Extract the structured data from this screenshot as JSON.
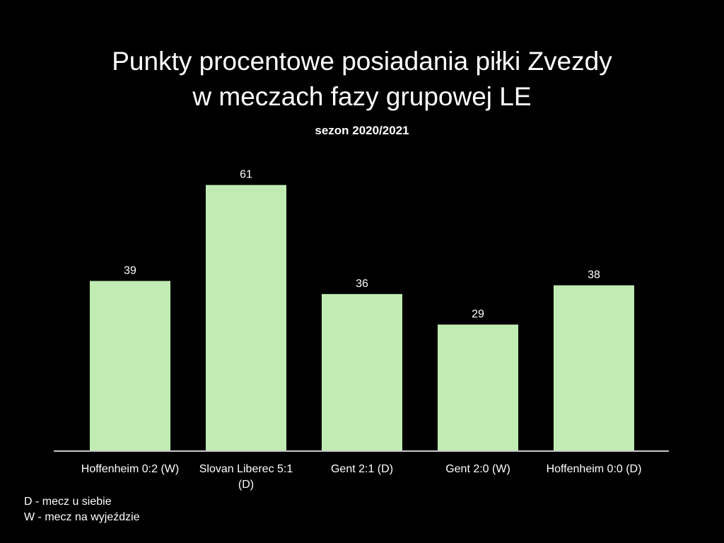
{
  "chart_data": {
    "type": "bar",
    "title_lines": [
      "Punkty procentowe posiadania piłki Zvezdy",
      "w meczach fazy grupowej LE"
    ],
    "subtitle": "sezon 2020/2021",
    "xlabel": "",
    "ylabel": "",
    "categories": [
      [
        "Hoffenheim 0:2 (W)"
      ],
      [
        "Slovan Liberec 5:1",
        "(D)"
      ],
      [
        "Gent 2:1 (D)"
      ],
      [
        "Gent 2:0 (W)"
      ],
      [
        "Hoffenheim 0:0 (D)"
      ]
    ],
    "values": [
      39,
      61,
      36,
      29,
      38
    ],
    "ylim": [
      0,
      70
    ],
    "grid": false,
    "data_labels": true
  },
  "notes": [
    "D - mecz u siebie",
    "W - mecz na wyjeździe"
  ],
  "colors": {
    "background": "#000000",
    "bar": "#c0ecb4",
    "text": "#ffffff",
    "axis": "#c8c8c8"
  }
}
